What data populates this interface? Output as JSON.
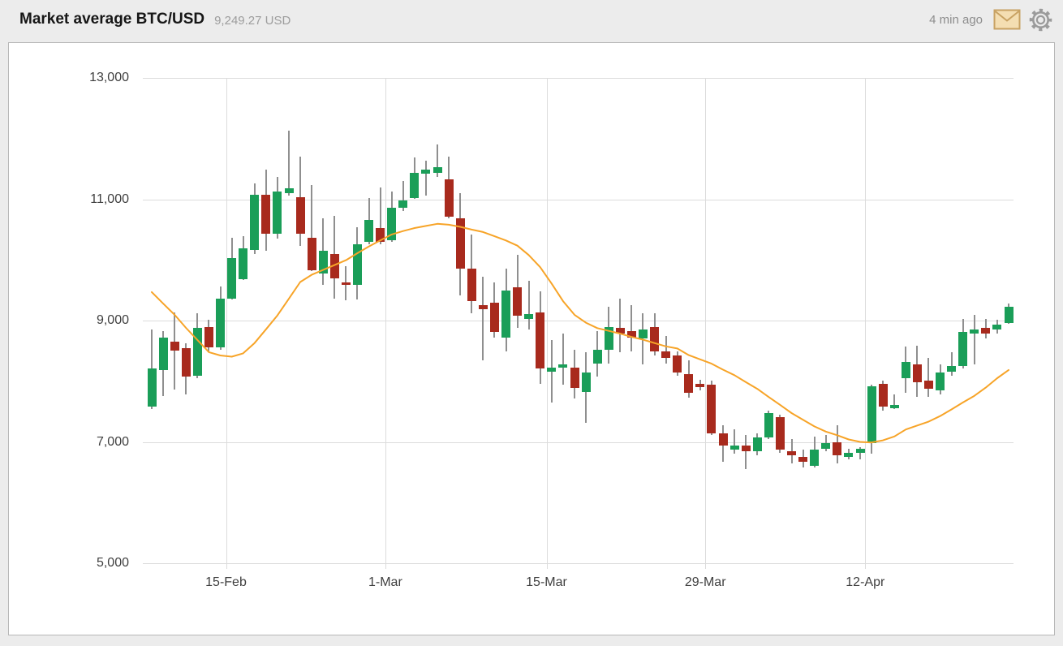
{
  "header": {
    "title": "Market average BTC/USD",
    "price": "9,249.27 USD",
    "updated": "4 min ago"
  },
  "chart_data": {
    "type": "candlestick",
    "title": "Market average BTC/USD",
    "pair": "BTC/USD",
    "last_price_usd": 9249.27,
    "currency": "USD",
    "grid": true,
    "ylim": [
      5000,
      13000
    ],
    "y_ticks": [
      {
        "value": 13000,
        "label": "13,000"
      },
      {
        "value": 11000,
        "label": "11,000"
      },
      {
        "value": 9000,
        "label": "9,000"
      },
      {
        "value": 7000,
        "label": "7,000"
      },
      {
        "value": 5000,
        "label": "5,000"
      }
    ],
    "x_ticks": [
      {
        "label": "15-Feb",
        "index": 6.5
      },
      {
        "label": "1-Mar",
        "index": 20.45
      },
      {
        "label": "15-Mar",
        "index": 34.55
      },
      {
        "label": "29-Mar",
        "index": 48.45
      },
      {
        "label": "12-Apr",
        "index": 62.45
      }
    ],
    "series_names": [
      "OHLC candles",
      "moving average"
    ],
    "ohlc": [
      [
        7580,
        8850,
        7540,
        8210
      ],
      [
        8185,
        8830,
        7760,
        8720
      ],
      [
        8650,
        9140,
        7860,
        8510
      ],
      [
        8540,
        8620,
        7780,
        8070
      ],
      [
        8090,
        9115,
        8050,
        8875
      ],
      [
        8895,
        9010,
        8490,
        8560
      ],
      [
        8560,
        9565,
        8520,
        9365
      ],
      [
        9365,
        10370,
        9345,
        10035
      ],
      [
        9680,
        10390,
        9670,
        10190
      ],
      [
        10165,
        11260,
        10100,
        11080
      ],
      [
        11080,
        11485,
        10145,
        10435
      ],
      [
        10435,
        11370,
        10345,
        11125
      ],
      [
        11105,
        12130,
        11060,
        11180
      ],
      [
        11035,
        11705,
        10235,
        10435
      ],
      [
        10370,
        11240,
        9810,
        9835
      ],
      [
        9770,
        10690,
        9590,
        10145
      ],
      [
        10100,
        10725,
        9365,
        9700
      ],
      [
        9630,
        9900,
        9340,
        9600
      ],
      [
        9590,
        10545,
        9345,
        10255
      ],
      [
        10300,
        11015,
        10255,
        10655
      ],
      [
        10520,
        11195,
        10255,
        10300
      ],
      [
        10320,
        11125,
        10300,
        10855
      ],
      [
        10855,
        11305,
        10810,
        10975
      ],
      [
        11015,
        11685,
        11005,
        11440
      ],
      [
        11420,
        11640,
        11060,
        11485
      ],
      [
        11440,
        11910,
        11370,
        11530
      ],
      [
        11330,
        11705,
        10685,
        10705
      ],
      [
        10685,
        11105,
        9410,
        9855
      ],
      [
        9855,
        10415,
        9120,
        9320
      ],
      [
        9255,
        9720,
        8340,
        9185
      ],
      [
        9300,
        9630,
        8720,
        8810
      ],
      [
        8720,
        9855,
        8495,
        9500
      ],
      [
        9545,
        10080,
        8875,
        9075
      ],
      [
        9030,
        9655,
        8855,
        9105
      ],
      [
        9140,
        9480,
        7960,
        8205
      ],
      [
        8160,
        8675,
        7650,
        8230
      ],
      [
        8230,
        8785,
        7940,
        8275
      ],
      [
        8230,
        8520,
        7715,
        7895
      ],
      [
        7825,
        8475,
        7315,
        8140
      ],
      [
        8295,
        8830,
        8075,
        8520
      ],
      [
        8520,
        9230,
        8295,
        8895
      ],
      [
        8875,
        9365,
        8475,
        8785
      ],
      [
        8830,
        9255,
        8495,
        8720
      ],
      [
        8700,
        9120,
        8275,
        8855
      ],
      [
        8895,
        9120,
        8430,
        8495
      ],
      [
        8495,
        8740,
        8295,
        8385
      ],
      [
        8430,
        8495,
        8095,
        8140
      ],
      [
        8120,
        8340,
        7725,
        7805
      ],
      [
        7960,
        8030,
        7850,
        7905
      ],
      [
        7940,
        8005,
        7110,
        7135
      ],
      [
        7135,
        7270,
        6665,
        6935
      ],
      [
        6870,
        7205,
        6800,
        6935
      ],
      [
        6935,
        7115,
        6555,
        6845
      ],
      [
        6845,
        7135,
        6780,
        7070
      ],
      [
        7070,
        7515,
        7045,
        7470
      ],
      [
        7405,
        7450,
        6825,
        6870
      ],
      [
        6845,
        7045,
        6645,
        6780
      ],
      [
        6755,
        6870,
        6580,
        6665
      ],
      [
        6600,
        7090,
        6580,
        6870
      ],
      [
        6890,
        7115,
        6845,
        6980
      ],
      [
        7000,
        7270,
        6645,
        6780
      ],
      [
        6755,
        6890,
        6710,
        6825
      ],
      [
        6825,
        6920,
        6710,
        6890
      ],
      [
        6980,
        7940,
        6800,
        7915
      ],
      [
        7960,
        8005,
        7515,
        7580
      ],
      [
        7560,
        7785,
        7540,
        7615
      ],
      [
        8050,
        8575,
        7805,
        8320
      ],
      [
        8275,
        8590,
        7740,
        7985
      ],
      [
        8005,
        8385,
        7740,
        7870
      ],
      [
        7850,
        8275,
        7785,
        8140
      ],
      [
        8160,
        8475,
        8095,
        8250
      ],
      [
        8250,
        9030,
        8205,
        8810
      ],
      [
        8785,
        9095,
        8275,
        8855
      ],
      [
        8875,
        9030,
        8700,
        8785
      ],
      [
        8855,
        9010,
        8785,
        8940
      ],
      [
        8965,
        9275,
        8940,
        9230
      ]
    ],
    "moving_average": [
      9470,
      9280,
      9095,
      8880,
      8680,
      8480,
      8425,
      8405,
      8460,
      8630,
      8855,
      9085,
      9360,
      9635,
      9755,
      9835,
      9915,
      9995,
      10110,
      10220,
      10320,
      10420,
      10475,
      10525,
      10560,
      10595,
      10580,
      10545,
      10500,
      10460,
      10390,
      10320,
      10235,
      10080,
      9880,
      9610,
      9320,
      9095,
      8965,
      8875,
      8830,
      8785,
      8730,
      8685,
      8630,
      8575,
      8540,
      8430,
      8360,
      8290,
      8190,
      8100,
      7985,
      7875,
      7740,
      7610,
      7475,
      7365,
      7255,
      7170,
      7110,
      7040,
      7000,
      6990,
      7025,
      7090,
      7205,
      7270,
      7335,
      7425,
      7535,
      7650,
      7760,
      7895,
      8050,
      8185
    ],
    "colors": {
      "up": "#1a9e58",
      "down": "#a82a1d",
      "wick": "#8f8f8f",
      "moving_average": "#f7a428",
      "grid": "#dcdcdc",
      "axis_text": "#3f3f3f"
    },
    "legend_position": "none"
  }
}
